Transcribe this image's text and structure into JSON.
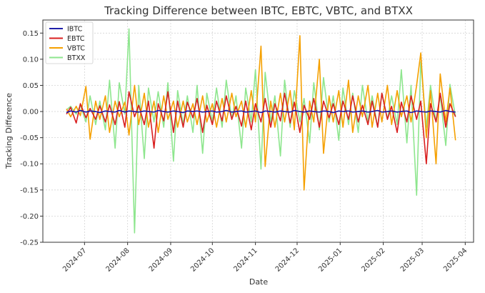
{
  "chart_data": {
    "type": "line",
    "title": "Tracking Difference between IBTC, EBTC, VBTC, and BTXX",
    "xlabel": "Date",
    "ylabel": "Tracking Difference",
    "xlim": [
      "2024-06-01",
      "2025-04-07"
    ],
    "ylim": [
      -0.25,
      0.175
    ],
    "x_ticks": [
      "2024-07",
      "2024-08",
      "2024-09",
      "2024-10",
      "2024-11",
      "2024-12",
      "2025-01",
      "2025-02",
      "2025-03",
      "2025-04"
    ],
    "y_ticks": [
      "-0.25",
      "-0.20",
      "-0.15",
      "-0.10",
      "-0.05",
      "0.00",
      "0.05",
      "0.10",
      "0.15"
    ],
    "y_tick_values": [
      -0.25,
      -0.2,
      -0.15,
      -0.1,
      -0.05,
      0.0,
      0.05,
      0.1,
      0.15
    ],
    "grid": true,
    "legend_position": "top-left",
    "x": [
      "2024-06-18",
      "2024-06-21",
      "2024-06-25",
      "2024-06-28",
      "2024-07-02",
      "2024-07-05",
      "2024-07-09",
      "2024-07-12",
      "2024-07-16",
      "2024-07-19",
      "2024-07-23",
      "2024-07-26",
      "2024-07-30",
      "2024-08-02",
      "2024-08-06",
      "2024-08-09",
      "2024-08-13",
      "2024-08-16",
      "2024-08-20",
      "2024-08-23",
      "2024-08-27",
      "2024-08-30",
      "2024-09-03",
      "2024-09-06",
      "2024-09-10",
      "2024-09-13",
      "2024-09-17",
      "2024-09-20",
      "2024-09-24",
      "2024-09-27",
      "2024-10-01",
      "2024-10-04",
      "2024-10-08",
      "2024-10-11",
      "2024-10-15",
      "2024-10-18",
      "2024-10-22",
      "2024-10-25",
      "2024-10-29",
      "2024-11-01",
      "2024-11-05",
      "2024-11-08",
      "2024-11-12",
      "2024-11-15",
      "2024-11-19",
      "2024-11-22",
      "2024-11-26",
      "2024-11-29",
      "2024-12-03",
      "2024-12-06",
      "2024-12-10",
      "2024-12-13",
      "2024-12-17",
      "2024-12-20",
      "2024-12-24",
      "2024-12-27",
      "2024-12-31",
      "2025-01-03",
      "2025-01-07",
      "2025-01-10",
      "2025-01-14",
      "2025-01-17",
      "2025-01-21",
      "2025-01-24",
      "2025-01-28",
      "2025-01-31",
      "2025-02-04",
      "2025-02-07",
      "2025-02-11",
      "2025-02-14",
      "2025-02-18",
      "2025-02-21",
      "2025-02-25",
      "2025-02-28",
      "2025-03-04",
      "2025-03-07",
      "2025-03-11",
      "2025-03-14",
      "2025-03-18",
      "2025-03-21",
      "2025-03-25"
    ],
    "series": [
      {
        "name": "IBTC",
        "color": "#1f1fa8",
        "values": [
          -0.002,
          0.001,
          -0.001,
          0.002,
          -0.001,
          0.001,
          0.0,
          -0.002,
          0.001,
          0.0,
          -0.001,
          0.002,
          -0.001,
          0.001,
          0.0,
          -0.001,
          0.001,
          0.0,
          -0.001,
          0.002,
          0.0,
          -0.001,
          0.001,
          0.0,
          -0.002,
          0.001,
          0.0,
          0.001,
          -0.001,
          0.0,
          0.001,
          -0.001,
          0.0,
          0.002,
          -0.001,
          0.0,
          0.001,
          -0.001,
          0.0,
          0.001,
          -0.002,
          0.001,
          0.0,
          -0.001,
          0.001,
          0.0,
          -0.001,
          0.002,
          0.0,
          -0.001,
          0.001,
          0.0,
          -0.001,
          0.001,
          0.0,
          -0.002,
          0.001,
          0.0,
          0.001,
          -0.001,
          0.0,
          0.001,
          -0.001,
          0.0,
          0.002,
          -0.001,
          0.0,
          0.001,
          -0.001,
          0.0,
          0.001,
          -0.002,
          0.001,
          0.0,
          -0.001,
          0.001,
          0.0,
          -0.001,
          0.002,
          0.0,
          -0.001
        ]
      },
      {
        "name": "EBTC",
        "color": "#d91f1f",
        "values": [
          -0.005,
          0.008,
          -0.022,
          0.015,
          -0.012,
          0.006,
          -0.015,
          0.011,
          -0.02,
          0.013,
          -0.025,
          0.019,
          -0.03,
          0.038,
          -0.01,
          0.012,
          -0.025,
          0.02,
          -0.07,
          0.015,
          -0.018,
          0.038,
          -0.04,
          0.02,
          -0.03,
          0.018,
          -0.012,
          0.025,
          -0.04,
          0.012,
          -0.025,
          0.02,
          -0.018,
          0.03,
          -0.015,
          0.01,
          -0.028,
          0.02,
          -0.035,
          0.015,
          -0.02,
          0.025,
          -0.03,
          0.015,
          -0.018,
          0.035,
          -0.022,
          0.018,
          -0.04,
          0.012,
          -0.015,
          0.025,
          -0.03,
          0.02,
          -0.012,
          0.015,
          -0.025,
          0.02,
          -0.015,
          0.03,
          -0.02,
          0.012,
          -0.025,
          0.02,
          -0.03,
          0.035,
          -0.015,
          0.01,
          -0.04,
          0.018,
          -0.02,
          0.03,
          -0.015,
          0.02,
          -0.1,
          0.015,
          -0.02,
          0.035,
          -0.03,
          0.015,
          -0.01
        ]
      },
      {
        "name": "VBTC",
        "color": "#f5a000",
        "values": [
          0.005,
          -0.01,
          0.01,
          -0.008,
          0.048,
          -0.053,
          0.02,
          -0.015,
          0.03,
          -0.04,
          0.02,
          -0.01,
          0.018,
          -0.045,
          0.05,
          -0.025,
          0.035,
          -0.03,
          0.02,
          -0.04,
          0.03,
          -0.015,
          0.02,
          -0.03,
          0.02,
          -0.02,
          0.015,
          -0.025,
          0.03,
          -0.02,
          0.015,
          -0.03,
          0.025,
          -0.02,
          0.035,
          -0.01,
          0.02,
          -0.03,
          0.04,
          -0.02,
          0.125,
          -0.105,
          0.02,
          -0.03,
          0.035,
          -0.02,
          0.04,
          -0.035,
          0.145,
          -0.15,
          0.02,
          -0.02,
          0.1,
          -0.08,
          0.03,
          -0.02,
          0.04,
          -0.03,
          0.06,
          -0.04,
          0.03,
          -0.01,
          0.05,
          -0.03,
          0.035,
          -0.02,
          0.05,
          -0.025,
          0.04,
          -0.01,
          0.03,
          -0.02,
          0.05,
          0.112,
          -0.05,
          0.04,
          -0.1,
          0.072,
          -0.02,
          0.045,
          -0.055
        ]
      },
      {
        "name": "BTXX",
        "color": "#8ee68e",
        "values": [
          0.003,
          0.01,
          -0.005,
          0.012,
          -0.02,
          0.03,
          -0.025,
          0.02,
          -0.035,
          0.06,
          -0.07,
          0.055,
          -0.005,
          0.158,
          -0.232,
          0.05,
          -0.09,
          0.045,
          -0.02,
          0.038,
          -0.03,
          0.055,
          -0.095,
          0.04,
          -0.025,
          0.03,
          -0.04,
          0.05,
          -0.08,
          0.035,
          -0.02,
          0.045,
          -0.03,
          0.06,
          -0.015,
          0.03,
          -0.07,
          0.045,
          -0.02,
          0.08,
          -0.11,
          0.075,
          -0.02,
          0.03,
          -0.085,
          0.06,
          -0.03,
          0.04,
          -0.02,
          0.025,
          -0.06,
          0.055,
          -0.035,
          0.065,
          -0.02,
          0.03,
          -0.055,
          0.045,
          -0.025,
          0.035,
          -0.04,
          0.05,
          -0.02,
          0.03,
          -0.03,
          0.035,
          -0.015,
          0.03,
          -0.025,
          0.08,
          -0.06,
          0.05,
          -0.16,
          0.095,
          -0.03,
          0.05,
          -0.02,
          0.03,
          -0.065,
          0.052,
          -0.01
        ]
      }
    ]
  }
}
